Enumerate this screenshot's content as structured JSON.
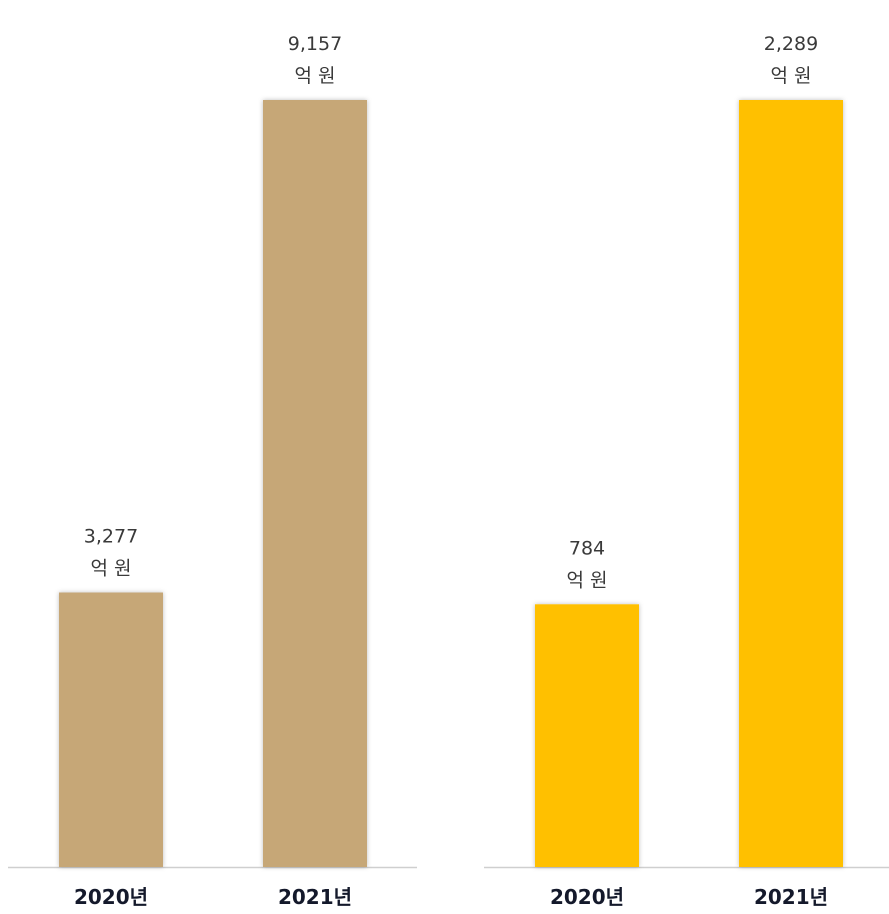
{
  "chart_data": [
    {
      "type": "bar",
      "categories": [
        "2020년",
        "2021년"
      ],
      "values": [
        3277,
        9157
      ],
      "value_labels": [
        "3,277",
        "9,157"
      ],
      "unit": "억 원",
      "color": "#c6a777",
      "grid": false,
      "legend": "none"
    },
    {
      "type": "bar",
      "categories": [
        "2020년",
        "2021년"
      ],
      "values": [
        784,
        2289
      ],
      "value_labels": [
        "784",
        "2,289"
      ],
      "unit": "억 원",
      "color": "#ffc000",
      "grid": false,
      "legend": "none"
    }
  ]
}
